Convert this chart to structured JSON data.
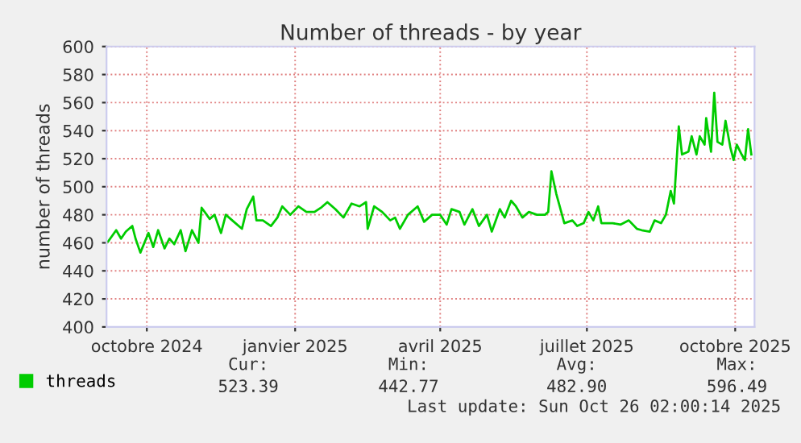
{
  "chart_data": {
    "type": "line",
    "title": "Number of threads - by year",
    "ylabel": "number of threads",
    "x": [
      "2024-09-07",
      "2024-09-12",
      "2024-09-15",
      "2024-09-18",
      "2024-09-22",
      "2024-09-24",
      "2024-09-27",
      "2024-10-02",
      "2024-10-05",
      "2024-10-08",
      "2024-10-12",
      "2024-10-15",
      "2024-10-18",
      "2024-10-22",
      "2024-10-25",
      "2024-10-29",
      "2024-11-02",
      "2024-11-04",
      "2024-11-09",
      "2024-11-12",
      "2024-11-16",
      "2024-11-19",
      "2024-11-24",
      "2024-11-29",
      "2024-12-02",
      "2024-12-06",
      "2024-12-08",
      "2024-12-12",
      "2024-12-17",
      "2024-12-21",
      "2024-12-24",
      "2024-12-29",
      "2025-01-03",
      "2025-01-08",
      "2025-01-13",
      "2025-01-17",
      "2025-01-21",
      "2025-01-26",
      "2025-01-31",
      "2025-02-05",
      "2025-02-10",
      "2025-02-14",
      "2025-02-15",
      "2025-02-19",
      "2025-02-24",
      "2025-03-01",
      "2025-03-04",
      "2025-03-07",
      "2025-03-12",
      "2025-03-18",
      "2025-03-22",
      "2025-03-27",
      "2025-04-01",
      "2025-04-05",
      "2025-04-08",
      "2025-04-13",
      "2025-04-16",
      "2025-04-21",
      "2025-04-25",
      "2025-04-30",
      "2025-05-03",
      "2025-05-08",
      "2025-05-11",
      "2025-05-15",
      "2025-05-18",
      "2025-05-22",
      "2025-05-26",
      "2025-05-31",
      "2025-06-05",
      "2025-06-07",
      "2025-06-09",
      "2025-06-12",
      "2025-06-17",
      "2025-06-22",
      "2025-06-25",
      "2025-06-29",
      "2025-07-02",
      "2025-07-05",
      "2025-07-08",
      "2025-07-10",
      "2025-07-17",
      "2025-07-22",
      "2025-07-27",
      "2025-08-01",
      "2025-08-04",
      "2025-08-09",
      "2025-08-12",
      "2025-08-16",
      "2025-08-19",
      "2025-08-22",
      "2025-08-24",
      "2025-08-27",
      "2025-08-29",
      "2025-09-02",
      "2025-09-04",
      "2025-09-07",
      "2025-09-09",
      "2025-09-12",
      "2025-09-13",
      "2025-09-16",
      "2025-09-18",
      "2025-09-20",
      "2025-09-23",
      "2025-09-25",
      "2025-09-28",
      "2025-09-30",
      "2025-10-02",
      "2025-10-05",
      "2025-10-07",
      "2025-10-09",
      "2025-10-11"
    ],
    "series": [
      {
        "name": "threads",
        "color": "#00cc00",
        "values": [
          461,
          469,
          463,
          468,
          472,
          463,
          453,
          467,
          457,
          469,
          456,
          463,
          459,
          469,
          454,
          469,
          460,
          485,
          477,
          480,
          467,
          480,
          475,
          470,
          484,
          493,
          476,
          476,
          472,
          478,
          486,
          480,
          486,
          482,
          482,
          485,
          489,
          484,
          478,
          488,
          486,
          489,
          470,
          486,
          482,
          476,
          478,
          470,
          480,
          486,
          475,
          480,
          480,
          473,
          484,
          482,
          473,
          484,
          472,
          480,
          468,
          484,
          478,
          490,
          486,
          478,
          482,
          480,
          480,
          482,
          511,
          495,
          474,
          476,
          472,
          474,
          482,
          476,
          486,
          474,
          474,
          473,
          476,
          470,
          469,
          468,
          476,
          474,
          480,
          497,
          488,
          543,
          523,
          525,
          536,
          523,
          536,
          530,
          549,
          525,
          567,
          532,
          530,
          547,
          528,
          519,
          530,
          523,
          519,
          541,
          523
        ]
      }
    ],
    "xlim": [
      "2024-09-06",
      "2025-10-13"
    ],
    "xticks": [
      {
        "value": "2024-10-01",
        "label": "octobre 2024"
      },
      {
        "value": "2025-01-01",
        "label": "janvier 2025"
      },
      {
        "value": "2025-04-01",
        "label": "avril 2025"
      },
      {
        "value": "2025-07-01",
        "label": "juillet 2025"
      },
      {
        "value": "2025-10-01",
        "label": "octobre 2025"
      }
    ],
    "ylim": [
      400,
      600
    ],
    "yticks": [
      400,
      420,
      440,
      460,
      480,
      500,
      520,
      540,
      560,
      580,
      600
    ],
    "grid": true,
    "legend": "bottom left",
    "annotations": [
      "Cur:",
      "Min:",
      "Avg:",
      "Max:",
      "523.39",
      "442.77",
      "482.90",
      "596.49",
      "Last update: Sun Oct 26 02:00:14 2025"
    ]
  }
}
